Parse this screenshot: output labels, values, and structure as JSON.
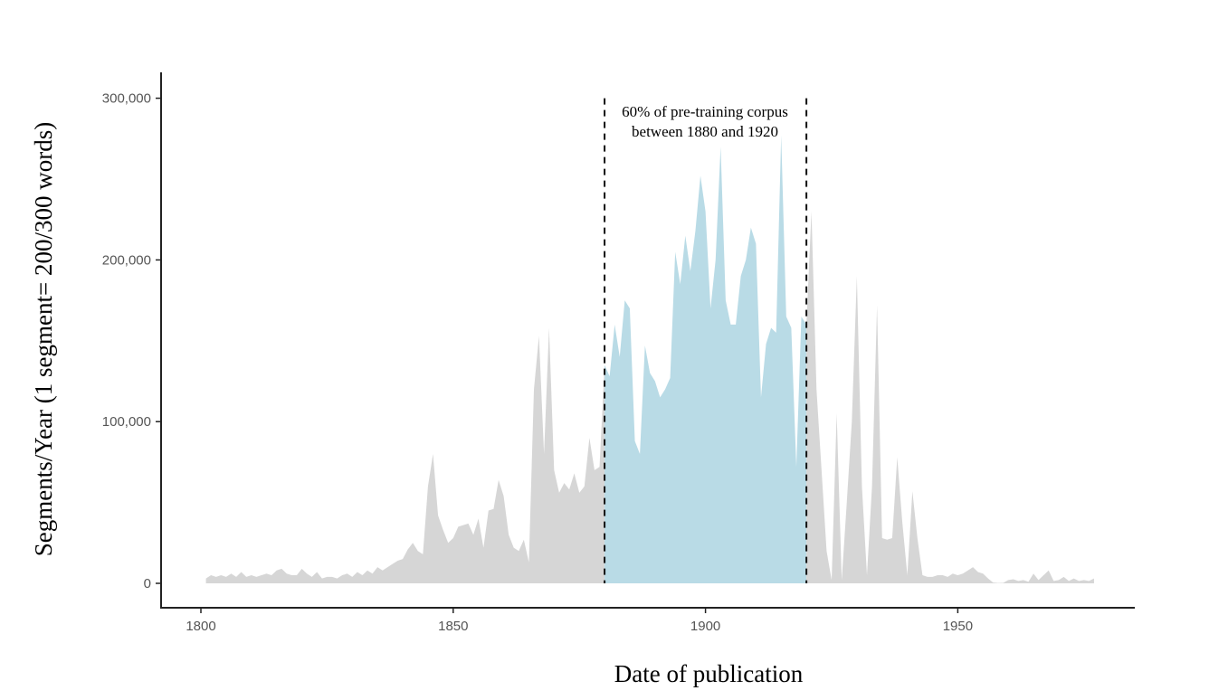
{
  "chart_data": {
    "type": "area",
    "xlabel": "Date of publication",
    "ylabel": "Segments/Year (1 segment= 200/300 words)",
    "xlim": [
      1792,
      1977
    ],
    "ylim": [
      -15000,
      315000
    ],
    "x_ticks": [
      1800,
      1850,
      1900,
      1950
    ],
    "x_tick_labels": [
      "1800",
      "1850",
      "1900",
      "1950"
    ],
    "y_ticks": [
      0,
      100000,
      200000,
      300000
    ],
    "y_tick_labels": [
      "0",
      "100,000",
      "200,000",
      "300,000"
    ],
    "grid": false,
    "colors": {
      "outside_range": "#d6d6d6",
      "highlight_range": "#b9dbe6",
      "axis": "#222222",
      "marker_line": "#111111"
    },
    "highlight": {
      "x_start": 1880,
      "x_end": 1920,
      "annotation": [
        "60% of pre-training corpus",
        "between 1880 and 1920"
      ]
    },
    "series": [
      {
        "values": [
          [
            1801,
            3000
          ],
          [
            1802,
            5000
          ],
          [
            1803,
            4000
          ],
          [
            1804,
            5000
          ],
          [
            1805,
            4000
          ],
          [
            1806,
            6000
          ],
          [
            1807,
            4000
          ],
          [
            1808,
            7000
          ],
          [
            1809,
            4000
          ],
          [
            1810,
            5000
          ],
          [
            1811,
            4000
          ],
          [
            1812,
            5000
          ],
          [
            1813,
            6000
          ],
          [
            1814,
            5000
          ],
          [
            1815,
            8000
          ],
          [
            1816,
            9000
          ],
          [
            1817,
            6000
          ],
          [
            1818,
            5000
          ],
          [
            1819,
            5000
          ],
          [
            1820,
            9000
          ],
          [
            1821,
            6000
          ],
          [
            1822,
            4000
          ],
          [
            1823,
            7000
          ],
          [
            1824,
            3000
          ],
          [
            1825,
            4000
          ],
          [
            1826,
            4000
          ],
          [
            1827,
            3000
          ],
          [
            1828,
            5000
          ],
          [
            1829,
            6000
          ],
          [
            1830,
            4000
          ],
          [
            1831,
            7000
          ],
          [
            1832,
            5000
          ],
          [
            1833,
            8000
          ],
          [
            1834,
            6000
          ],
          [
            1835,
            10000
          ],
          [
            1836,
            8000
          ],
          [
            1837,
            10000
          ],
          [
            1838,
            12000
          ],
          [
            1839,
            14000
          ],
          [
            1840,
            15000
          ],
          [
            1841,
            21000
          ],
          [
            1842,
            25000
          ],
          [
            1843,
            20000
          ],
          [
            1844,
            18000
          ],
          [
            1845,
            60000
          ],
          [
            1846,
            80000
          ],
          [
            1847,
            42000
          ],
          [
            1848,
            33000
          ],
          [
            1849,
            25000
          ],
          [
            1850,
            28000
          ],
          [
            1851,
            35000
          ],
          [
            1852,
            36000
          ],
          [
            1853,
            37000
          ],
          [
            1854,
            30000
          ],
          [
            1855,
            40000
          ],
          [
            1856,
            22000
          ],
          [
            1857,
            45000
          ],
          [
            1858,
            46000
          ],
          [
            1859,
            64000
          ],
          [
            1860,
            54000
          ],
          [
            1861,
            30000
          ],
          [
            1862,
            22000
          ],
          [
            1863,
            20000
          ],
          [
            1864,
            27000
          ],
          [
            1865,
            13000
          ],
          [
            1866,
            120000
          ],
          [
            1867,
            153000
          ],
          [
            1868,
            80000
          ],
          [
            1869,
            158000
          ],
          [
            1870,
            70000
          ],
          [
            1871,
            56000
          ],
          [
            1872,
            62000
          ],
          [
            1873,
            58000
          ],
          [
            1874,
            68000
          ],
          [
            1875,
            56000
          ],
          [
            1876,
            60000
          ],
          [
            1877,
            90000
          ],
          [
            1878,
            70000
          ],
          [
            1879,
            72000
          ],
          [
            1880,
            135000
          ],
          [
            1881,
            128000
          ],
          [
            1882,
            160000
          ],
          [
            1883,
            140000
          ],
          [
            1884,
            175000
          ],
          [
            1885,
            170000
          ],
          [
            1886,
            88000
          ],
          [
            1887,
            80000
          ],
          [
            1888,
            147000
          ],
          [
            1889,
            130000
          ],
          [
            1890,
            125000
          ],
          [
            1891,
            115000
          ],
          [
            1892,
            120000
          ],
          [
            1893,
            127000
          ],
          [
            1894,
            205000
          ],
          [
            1895,
            185000
          ],
          [
            1896,
            215000
          ],
          [
            1897,
            193000
          ],
          [
            1898,
            218000
          ],
          [
            1899,
            252000
          ],
          [
            1900,
            230000
          ],
          [
            1901,
            170000
          ],
          [
            1902,
            200000
          ],
          [
            1903,
            270000
          ],
          [
            1904,
            175000
          ],
          [
            1905,
            160000
          ],
          [
            1906,
            160000
          ],
          [
            1907,
            190000
          ],
          [
            1908,
            200000
          ],
          [
            1909,
            220000
          ],
          [
            1910,
            210000
          ],
          [
            1911,
            115000
          ],
          [
            1912,
            148000
          ],
          [
            1913,
            158000
          ],
          [
            1914,
            155000
          ],
          [
            1915,
            277000
          ],
          [
            1916,
            165000
          ],
          [
            1917,
            158000
          ],
          [
            1918,
            72000
          ],
          [
            1919,
            165000
          ],
          [
            1920,
            160000
          ],
          [
            1921,
            230000
          ],
          [
            1922,
            120000
          ],
          [
            1923,
            70000
          ],
          [
            1924,
            20000
          ],
          [
            1925,
            2000
          ],
          [
            1926,
            105000
          ],
          [
            1927,
            2000
          ],
          [
            1928,
            50000
          ],
          [
            1929,
            100000
          ],
          [
            1930,
            190000
          ],
          [
            1931,
            60000
          ],
          [
            1932,
            5000
          ],
          [
            1933,
            60000
          ],
          [
            1934,
            172000
          ],
          [
            1935,
            28000
          ],
          [
            1936,
            27000
          ],
          [
            1937,
            28000
          ],
          [
            1938,
            78000
          ],
          [
            1939,
            38000
          ],
          [
            1940,
            5000
          ],
          [
            1941,
            57000
          ],
          [
            1942,
            28000
          ],
          [
            1943,
            5000
          ],
          [
            1944,
            4000
          ],
          [
            1945,
            4000
          ],
          [
            1946,
            5000
          ],
          [
            1947,
            5000
          ],
          [
            1948,
            4000
          ],
          [
            1949,
            6000
          ],
          [
            1950,
            5000
          ],
          [
            1951,
            6000
          ],
          [
            1952,
            8000
          ],
          [
            1953,
            10000
          ],
          [
            1954,
            7000
          ],
          [
            1955,
            6000
          ],
          [
            1956,
            3000
          ],
          [
            1957,
            500
          ],
          [
            1958,
            200
          ],
          [
            1959,
            300
          ],
          [
            1960,
            2000
          ],
          [
            1961,
            2500
          ],
          [
            1962,
            1500
          ],
          [
            1963,
            2000
          ],
          [
            1964,
            1000
          ],
          [
            1965,
            6000
          ],
          [
            1966,
            2000
          ],
          [
            1967,
            5000
          ],
          [
            1968,
            8000
          ],
          [
            1969,
            1500
          ],
          [
            1970,
            2000
          ],
          [
            1971,
            4000
          ],
          [
            1972,
            1500
          ],
          [
            1973,
            3000
          ],
          [
            1974,
            1500
          ],
          [
            1975,
            2000
          ],
          [
            1976,
            1500
          ],
          [
            1977,
            3000
          ]
        ]
      }
    ]
  }
}
